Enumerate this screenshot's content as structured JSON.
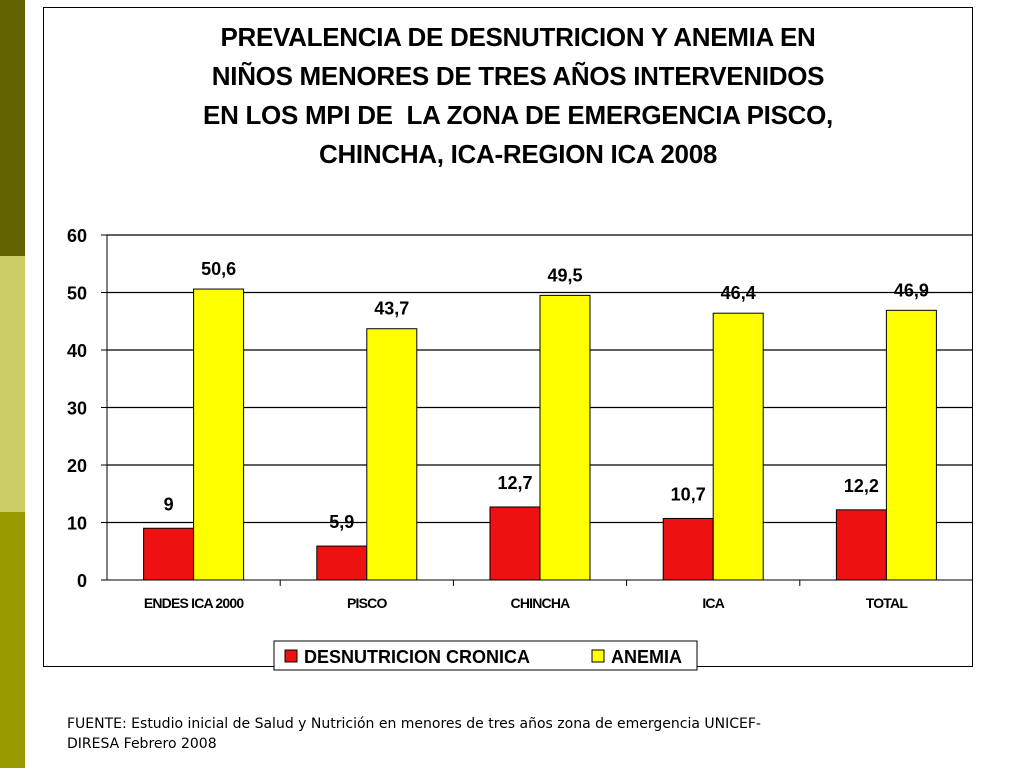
{
  "theme": {
    "sidebar_colors": [
      "#636300",
      "#cccc66",
      "#9a9a00"
    ],
    "series_colors": [
      "#ee1111",
      "#ffff00"
    ]
  },
  "chart_data": {
    "type": "bar",
    "title_lines": [
      "PREVALENCIA DE DESNUTRICION Y ANEMIA EN",
      "NIÑOS MENORES DE TRES AÑOS INTERVENIDOS",
      "EN LOS MPI DE  LA ZONA DE EMERGENCIA PISCO,",
      "CHINCHA, ICA-REGION ICA 2008"
    ],
    "categories": [
      "ENDES ICA 2000",
      "PISCO",
      "CHINCHA",
      "ICA",
      "TOTAL"
    ],
    "series": [
      {
        "name": "DESNUTRICION CRONICA",
        "values": [
          9,
          5.9,
          12.7,
          10.7,
          12.2
        ],
        "labels": [
          "9",
          "5,9",
          "12,7",
          "10,7",
          "12,2"
        ]
      },
      {
        "name": "ANEMIA",
        "values": [
          50.6,
          43.7,
          49.5,
          46.4,
          46.9
        ],
        "labels": [
          "50,6",
          "43,7",
          "49,5",
          "46,4",
          "46,9"
        ]
      }
    ],
    "ylim": [
      0,
      60
    ],
    "yticks": [
      0,
      10,
      20,
      30,
      40,
      50,
      60
    ],
    "grid": true,
    "legend_position": "bottom"
  },
  "footnote": {
    "line1": "FUENTE: Estudio inicial de Salud y Nutrición en menores de tres años zona de emergencia UNICEF-",
    "line2": "DIRESA Febrero 2008"
  }
}
